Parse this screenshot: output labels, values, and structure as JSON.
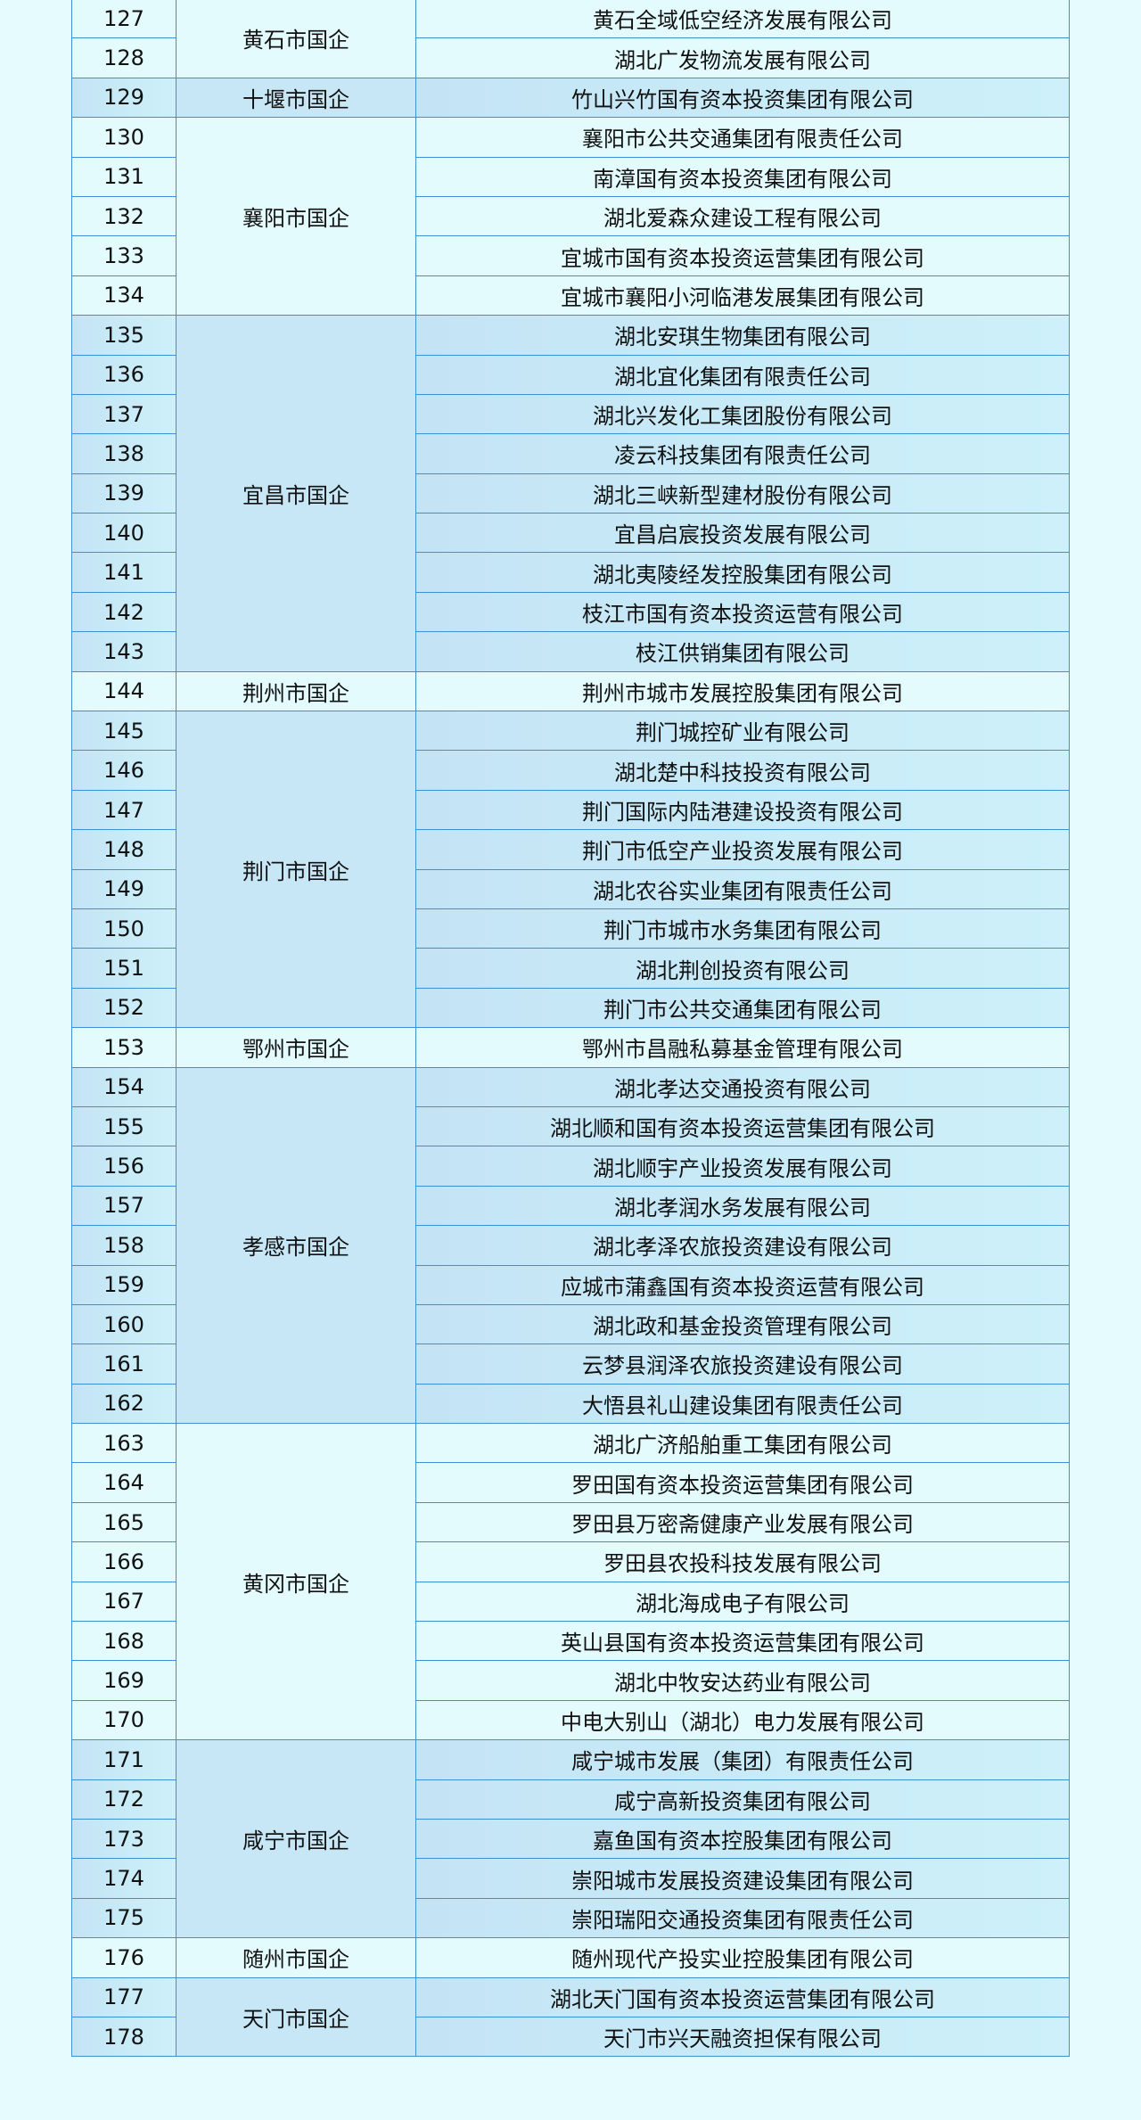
{
  "colors": {
    "light_row": "#e3fbfd",
    "blue_row": "#c5e6f6",
    "border": "#3f8fd6",
    "background": "#e6fbfd"
  },
  "groups": [
    {
      "region": "黄石市国企",
      "rows": [
        {
          "no": "127",
          "company": "黄石全域低空经济发展有限公司"
        },
        {
          "no": "128",
          "company": "湖北广发物流发展有限公司"
        }
      ]
    },
    {
      "region": "十堰市国企",
      "rows": [
        {
          "no": "129",
          "company": "竹山兴竹国有资本投资集团有限公司"
        }
      ]
    },
    {
      "region": "襄阳市国企",
      "rows": [
        {
          "no": "130",
          "company": "襄阳市公共交通集团有限责任公司"
        },
        {
          "no": "131",
          "company": "南漳国有资本投资集团有限公司"
        },
        {
          "no": "132",
          "company": "湖北爱森众建设工程有限公司"
        },
        {
          "no": "133",
          "company": "宜城市国有资本投资运营集团有限公司"
        },
        {
          "no": "134",
          "company": "宜城市襄阳小河临港发展集团有限公司"
        }
      ]
    },
    {
      "region": "宜昌市国企",
      "rows": [
        {
          "no": "135",
          "company": "湖北安琪生物集团有限公司"
        },
        {
          "no": "136",
          "company": "湖北宜化集团有限责任公司"
        },
        {
          "no": "137",
          "company": "湖北兴发化工集团股份有限公司"
        },
        {
          "no": "138",
          "company": "凌云科技集团有限责任公司"
        },
        {
          "no": "139",
          "company": "湖北三峡新型建材股份有限公司"
        },
        {
          "no": "140",
          "company": "宜昌启宸投资发展有限公司"
        },
        {
          "no": "141",
          "company": "湖北夷陵经发控股集团有限公司"
        },
        {
          "no": "142",
          "company": "枝江市国有资本投资运营有限公司"
        },
        {
          "no": "143",
          "company": "枝江供销集团有限公司"
        }
      ]
    },
    {
      "region": "荆州市国企",
      "rows": [
        {
          "no": "144",
          "company": "荆州市城市发展控股集团有限公司"
        }
      ]
    },
    {
      "region": "荆门市国企",
      "rows": [
        {
          "no": "145",
          "company": "荆门城控矿业有限公司"
        },
        {
          "no": "146",
          "company": "湖北楚中科技投资有限公司"
        },
        {
          "no": "147",
          "company": "荆门国际内陆港建设投资有限公司"
        },
        {
          "no": "148",
          "company": "荆门市低空产业投资发展有限公司"
        },
        {
          "no": "149",
          "company": "湖北农谷实业集团有限责任公司"
        },
        {
          "no": "150",
          "company": "荆门市城市水务集团有限公司"
        },
        {
          "no": "151",
          "company": "湖北荆创投资有限公司"
        },
        {
          "no": "152",
          "company": "荆门市公共交通集团有限公司"
        }
      ]
    },
    {
      "region": "鄂州市国企",
      "rows": [
        {
          "no": "153",
          "company": "鄂州市昌融私募基金管理有限公司"
        }
      ]
    },
    {
      "region": "孝感市国企",
      "rows": [
        {
          "no": "154",
          "company": "湖北孝达交通投资有限公司"
        },
        {
          "no": "155",
          "company": "湖北顺和国有资本投资运营集团有限公司"
        },
        {
          "no": "156",
          "company": "湖北顺宇产业投资发展有限公司"
        },
        {
          "no": "157",
          "company": "湖北孝润水务发展有限公司"
        },
        {
          "no": "158",
          "company": "湖北孝泽农旅投资建设有限公司"
        },
        {
          "no": "159",
          "company": "应城市蒲鑫国有资本投资运营有限公司"
        },
        {
          "no": "160",
          "company": "湖北政和基金投资管理有限公司"
        },
        {
          "no": "161",
          "company": "云梦县润泽农旅投资建设有限公司"
        },
        {
          "no": "162",
          "company": "大悟县礼山建设集团有限责任公司"
        }
      ]
    },
    {
      "region": "黄冈市国企",
      "rows": [
        {
          "no": "163",
          "company": "湖北广济船舶重工集团有限公司"
        },
        {
          "no": "164",
          "company": "罗田国有资本投资运营集团有限公司"
        },
        {
          "no": "165",
          "company": "罗田县万密斋健康产业发展有限公司"
        },
        {
          "no": "166",
          "company": "罗田县农投科技发展有限公司"
        },
        {
          "no": "167",
          "company": "湖北海成电子有限公司"
        },
        {
          "no": "168",
          "company": "英山县国有资本投资运营集团有限公司"
        },
        {
          "no": "169",
          "company": "湖北中牧安达药业有限公司"
        },
        {
          "no": "170",
          "company": "中电大别山（湖北）电力发展有限公司"
        }
      ]
    },
    {
      "region": "咸宁市国企",
      "rows": [
        {
          "no": "171",
          "company": "咸宁城市发展（集团）有限责任公司"
        },
        {
          "no": "172",
          "company": "咸宁高新投资集团有限公司"
        },
        {
          "no": "173",
          "company": "嘉鱼国有资本控股集团有限公司"
        },
        {
          "no": "174",
          "company": "崇阳城市发展投资建设集团有限公司"
        },
        {
          "no": "175",
          "company": "崇阳瑞阳交通投资集团有限责任公司"
        }
      ]
    },
    {
      "region": "随州市国企",
      "rows": [
        {
          "no": "176",
          "company": "随州现代产投实业控股集团有限公司"
        }
      ]
    },
    {
      "region": "天门市国企",
      "rows": [
        {
          "no": "177",
          "company": "湖北天门国有资本投资运营集团有限公司"
        },
        {
          "no": "178",
          "company": "天门市兴天融资担保有限公司"
        }
      ]
    }
  ]
}
